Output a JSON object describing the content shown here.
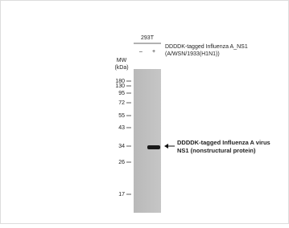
{
  "sample": {
    "cell_line": "293T",
    "lanes": [
      "–",
      "+"
    ],
    "treatment": [
      "DDDDK-tagged Influenza A_NS1",
      "(A/WSN/1933(H1N1))"
    ]
  },
  "mw": {
    "title": [
      "MW",
      "(kDa)"
    ],
    "markers": [
      "180",
      "130",
      "95",
      "72",
      "55",
      "43",
      "34",
      "26",
      "17"
    ]
  },
  "band_label": [
    "DDDDK-tagged  Influenza A virus",
    "NS1 (nonstructural  protein)"
  ]
}
